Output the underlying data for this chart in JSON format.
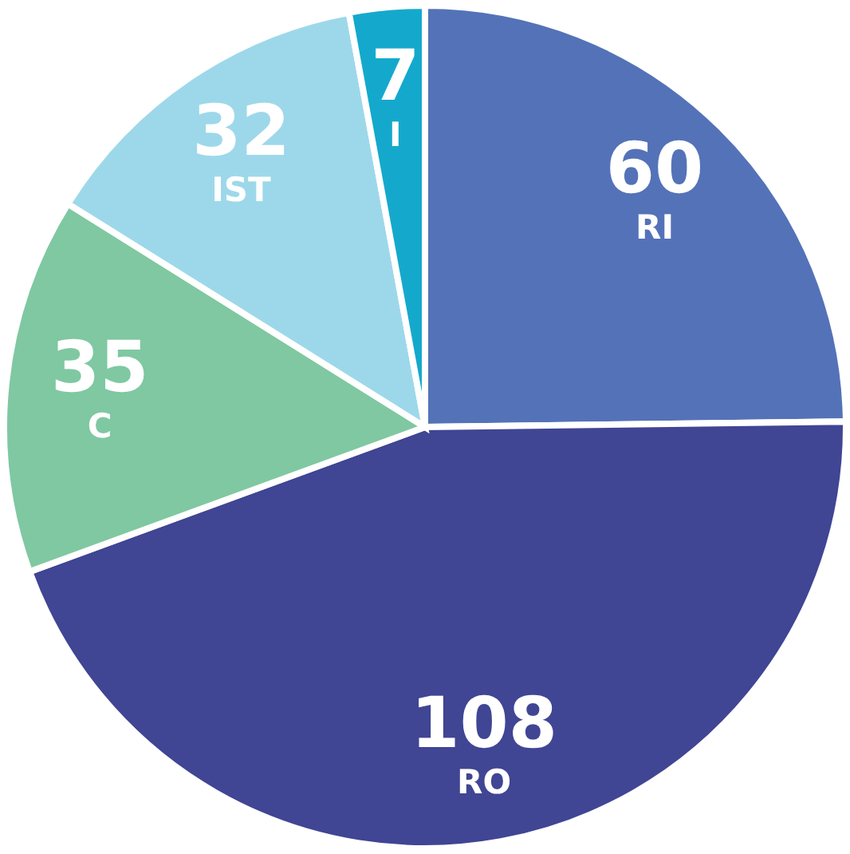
{
  "chart_data": {
    "type": "pie",
    "categories": [
      "RI",
      "RO",
      "C",
      "IST",
      "I"
    ],
    "values": [
      60,
      108,
      35,
      32,
      7
    ],
    "colors": [
      "#5472b8",
      "#404594",
      "#7fc8a2",
      "#9dd8ea",
      "#14a9cc"
    ],
    "data_labels": true
  }
}
